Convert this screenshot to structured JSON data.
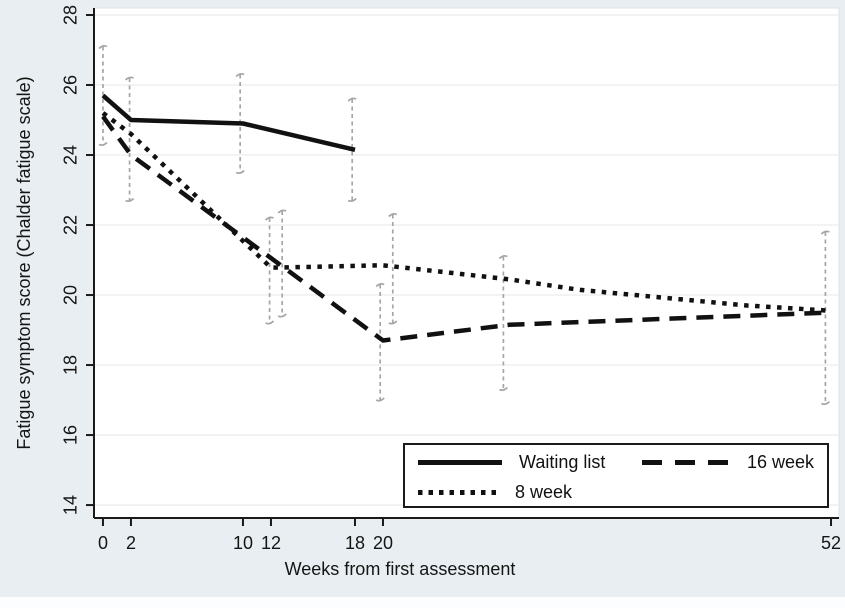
{
  "figure": {
    "background_color": "#e8eef1",
    "plot_background_color": "#ffffff",
    "bottom_strip_color": "#fbfdfe",
    "gridline_color": "#ececec",
    "axis_color": "#1a1a1a",
    "error_bar_color": "#a6a6a6",
    "series_color": "#111111"
  },
  "chart_data": {
    "type": "line",
    "title": "",
    "xlabel": "Weeks from first assessment",
    "ylabel": "Fatigue symptom score (Chalder fatigue scale)",
    "x_ticks": [
      0,
      2,
      10,
      12,
      18,
      20,
      52
    ],
    "y_ticks": [
      14,
      16,
      18,
      20,
      22,
      24,
      26,
      28
    ],
    "xlim": [
      -0.64,
      52.57
    ],
    "ylim": [
      13.63,
      28.2
    ],
    "grid": "horizontal",
    "legend_position": "inside-bottom-right",
    "series": [
      {
        "name": "8 week",
        "style": "dotted",
        "points": [
          [
            0,
            25.2
          ],
          [
            2,
            24.6
          ],
          [
            12,
            20.78
          ],
          [
            20,
            20.85
          ],
          [
            29,
            20.45
          ],
          [
            34,
            20.15
          ],
          [
            46,
            19.7
          ],
          [
            52,
            19.55
          ]
        ]
      },
      {
        "name": "16 week",
        "style": "dashed",
        "points": [
          [
            0,
            25.1
          ],
          [
            2,
            24.0
          ],
          [
            20,
            18.7
          ],
          [
            29,
            19.15
          ],
          [
            52,
            19.5
          ]
        ]
      },
      {
        "name": "Waiting list",
        "style": "solid",
        "points": [
          [
            0,
            25.7
          ],
          [
            2,
            25.0
          ],
          [
            10,
            24.9
          ],
          [
            18,
            24.15
          ]
        ]
      }
    ],
    "error_bars": [
      {
        "x": 0,
        "low": 24.3,
        "high": 27.1
      },
      {
        "x": 1.9,
        "low": 22.7,
        "high": 26.2
      },
      {
        "x": 9.8,
        "low": 23.5,
        "high": 26.3
      },
      {
        "x": 11.9,
        "low": 19.2,
        "high": 22.2
      },
      {
        "x": 12.8,
        "low": 19.4,
        "high": 22.4
      },
      {
        "x": 17.8,
        "low": 22.7,
        "high": 25.6
      },
      {
        "x": 19.8,
        "low": 17.0,
        "high": 20.3
      },
      {
        "x": 20.7,
        "low": 19.2,
        "high": 22.3
      },
      {
        "x": 28.6,
        "low": 17.3,
        "high": 21.1
      },
      {
        "x": 51.6,
        "low": 16.9,
        "high": 21.8
      }
    ]
  },
  "legend": {
    "items": [
      {
        "label": "Waiting list",
        "style": "solid"
      },
      {
        "label": "16 week",
        "style": "dashed"
      },
      {
        "label": "8 week",
        "style": "dotted"
      }
    ]
  }
}
